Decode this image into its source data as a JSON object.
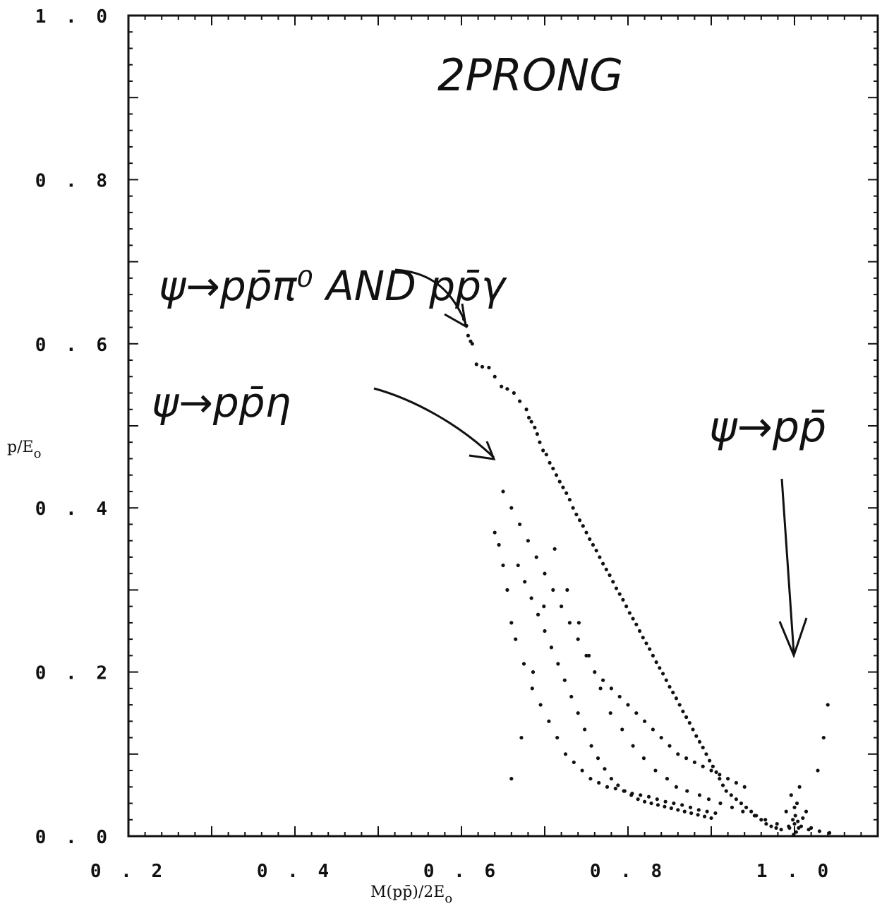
{
  "chart_data": {
    "type": "scatter",
    "title": "2PRONG",
    "xlabel": "M(pp̄)/2E",
    "xlabel_sub": "o",
    "ylabel": "p/E",
    "ylabel_sub": "o",
    "xlim": [
      0.2,
      1.1
    ],
    "ylim": [
      0.0,
      1.0
    ],
    "x_ticks": [
      0.2,
      0.4,
      0.6,
      0.8,
      1.0
    ],
    "x_tick_labels": [
      "0 . 2",
      "0 . 4",
      "0 . 6",
      "0 . 8",
      "1 . 0"
    ],
    "y_ticks": [
      0.0,
      0.2,
      0.4,
      0.6,
      0.8,
      1.0
    ],
    "y_tick_labels": [
      "0 . 0",
      "0 . 2",
      "0 . 4",
      "0 . 6",
      "0 . 8",
      "1 . 0"
    ],
    "grid": false,
    "annotations": [
      {
        "text": "ψ→pp̄π⁰  AND pp̄γ",
        "arrow_to": [
          0.605,
          0.625
        ]
      },
      {
        "text": "ψ→pp̄η",
        "arrow_to": [
          0.63,
          0.465
        ]
      },
      {
        "text": "ψ→pp̄",
        "arrow_to": [
          1.0,
          0.225
        ]
      }
    ],
    "series": [
      {
        "x": [
          0.603,
          0.606,
          0.608,
          0.611,
          0.613,
          0.618,
          0.625,
          0.633,
          0.64,
          0.648,
          0.655,
          0.663,
          0.67,
          0.678,
          0.681,
          0.684,
          0.688,
          0.691,
          0.694,
          0.698,
          0.702,
          0.706,
          0.71,
          0.714,
          0.718,
          0.722,
          0.726,
          0.73,
          0.734,
          0.738,
          0.742,
          0.746,
          0.75,
          0.754,
          0.758,
          0.762,
          0.766,
          0.77,
          0.774,
          0.778,
          0.782,
          0.786,
          0.79,
          0.794,
          0.798,
          0.802,
          0.806,
          0.81,
          0.814,
          0.818,
          0.822,
          0.826,
          0.83,
          0.834,
          0.838,
          0.842,
          0.846,
          0.85,
          0.854,
          0.858,
          0.862,
          0.866,
          0.87,
          0.874,
          0.878,
          0.882,
          0.886,
          0.89,
          0.894,
          0.898,
          0.902,
          0.906,
          0.91,
          0.914,
          0.918,
          0.924,
          0.93,
          0.936,
          0.942,
          0.948,
          0.954,
          0.96,
          0.966,
          0.972,
          0.978,
          0.984,
          0.99,
          0.994,
          0.996,
          0.998,
          0.999,
          1.0,
          1.0,
          1.001,
          1.002,
          1.003,
          1.004,
          1.006,
          1.008,
          1.01,
          1.014,
          1.02,
          1.028,
          1.035,
          1.04,
          0.64,
          0.645,
          0.65,
          0.655,
          0.66,
          0.665,
          0.675,
          0.685,
          0.695,
          0.705,
          0.715,
          0.725,
          0.735,
          0.745,
          0.755,
          0.765,
          0.775,
          0.785,
          0.795,
          0.805,
          0.815,
          0.825,
          0.835,
          0.845,
          0.855,
          0.865,
          0.875,
          0.885,
          0.895,
          0.905,
          0.65,
          0.66,
          0.67,
          0.68,
          0.69,
          0.7,
          0.71,
          0.72,
          0.73,
          0.74,
          0.75,
          0.76,
          0.77,
          0.78,
          0.79,
          0.8,
          0.81,
          0.82,
          0.83,
          0.84,
          0.85,
          0.86,
          0.87,
          0.88,
          0.89,
          0.9,
          0.91,
          0.92,
          0.93,
          0.94,
          0.668,
          0.676,
          0.684,
          0.692,
          0.7,
          0.708,
          0.716,
          0.724,
          0.732,
          0.74,
          0.748,
          0.756,
          0.764,
          0.772,
          0.78,
          0.788,
          0.796,
          0.804,
          0.812,
          0.82,
          0.828,
          0.836,
          0.844,
          0.852,
          0.86,
          0.868,
          0.876,
          0.884,
          0.892,
          0.9,
          0.66,
          0.672,
          0.686,
          0.699,
          0.712,
          0.727,
          0.741,
          0.753,
          0.767,
          0.779,
          0.793,
          0.806,
          0.819,
          0.833,
          0.847,
          0.858,
          0.871,
          0.886,
          0.897,
          0.911,
          0.925,
          0.938,
          0.952,
          0.965,
          0.979,
          0.993,
          1.005,
          1.017,
          1.03,
          1.042
        ],
        "y": [
          0.63,
          0.622,
          0.61,
          0.603,
          0.6,
          0.575,
          0.572,
          0.571,
          0.56,
          0.548,
          0.545,
          0.54,
          0.53,
          0.52,
          0.51,
          0.505,
          0.498,
          0.49,
          0.48,
          0.47,
          0.465,
          0.455,
          0.448,
          0.44,
          0.432,
          0.425,
          0.418,
          0.41,
          0.4,
          0.392,
          0.385,
          0.378,
          0.37,
          0.362,
          0.355,
          0.348,
          0.34,
          0.332,
          0.325,
          0.318,
          0.31,
          0.302,
          0.295,
          0.288,
          0.28,
          0.272,
          0.265,
          0.258,
          0.25,
          0.242,
          0.235,
          0.228,
          0.22,
          0.212,
          0.205,
          0.198,
          0.19,
          0.182,
          0.175,
          0.168,
          0.16,
          0.152,
          0.145,
          0.138,
          0.13,
          0.122,
          0.115,
          0.108,
          0.1,
          0.092,
          0.085,
          0.078,
          0.07,
          0.062,
          0.055,
          0.05,
          0.045,
          0.04,
          0.035,
          0.03,
          0.025,
          0.02,
          0.015,
          0.012,
          0.01,
          0.008,
          0.03,
          0.01,
          0.05,
          0.02,
          0.002,
          0.035,
          0.015,
          0.025,
          0.005,
          0.04,
          0.018,
          0.06,
          0.012,
          0.022,
          0.03,
          0.01,
          0.08,
          0.12,
          0.16,
          0.37,
          0.355,
          0.33,
          0.3,
          0.26,
          0.24,
          0.21,
          0.18,
          0.16,
          0.14,
          0.12,
          0.1,
          0.09,
          0.08,
          0.07,
          0.065,
          0.06,
          0.058,
          0.055,
          0.052,
          0.05,
          0.048,
          0.045,
          0.042,
          0.04,
          0.038,
          0.035,
          0.032,
          0.03,
          0.028,
          0.42,
          0.4,
          0.38,
          0.36,
          0.34,
          0.32,
          0.3,
          0.28,
          0.26,
          0.24,
          0.22,
          0.2,
          0.19,
          0.18,
          0.17,
          0.16,
          0.15,
          0.14,
          0.13,
          0.12,
          0.11,
          0.1,
          0.095,
          0.09,
          0.085,
          0.08,
          0.075,
          0.07,
          0.065,
          0.06,
          0.33,
          0.31,
          0.29,
          0.27,
          0.25,
          0.23,
          0.21,
          0.19,
          0.17,
          0.15,
          0.13,
          0.11,
          0.095,
          0.082,
          0.07,
          0.062,
          0.055,
          0.05,
          0.045,
          0.042,
          0.04,
          0.038,
          0.036,
          0.034,
          0.032,
          0.03,
          0.028,
          0.026,
          0.024,
          0.022,
          0.07,
          0.12,
          0.2,
          0.28,
          0.35,
          0.3,
          0.26,
          0.22,
          0.18,
          0.15,
          0.13,
          0.11,
          0.095,
          0.08,
          0.07,
          0.06,
          0.055,
          0.05,
          0.045,
          0.04,
          0.035,
          0.03,
          0.025,
          0.02,
          0.015,
          0.012,
          0.01,
          0.008,
          0.006,
          0.004
        ]
      }
    ]
  }
}
